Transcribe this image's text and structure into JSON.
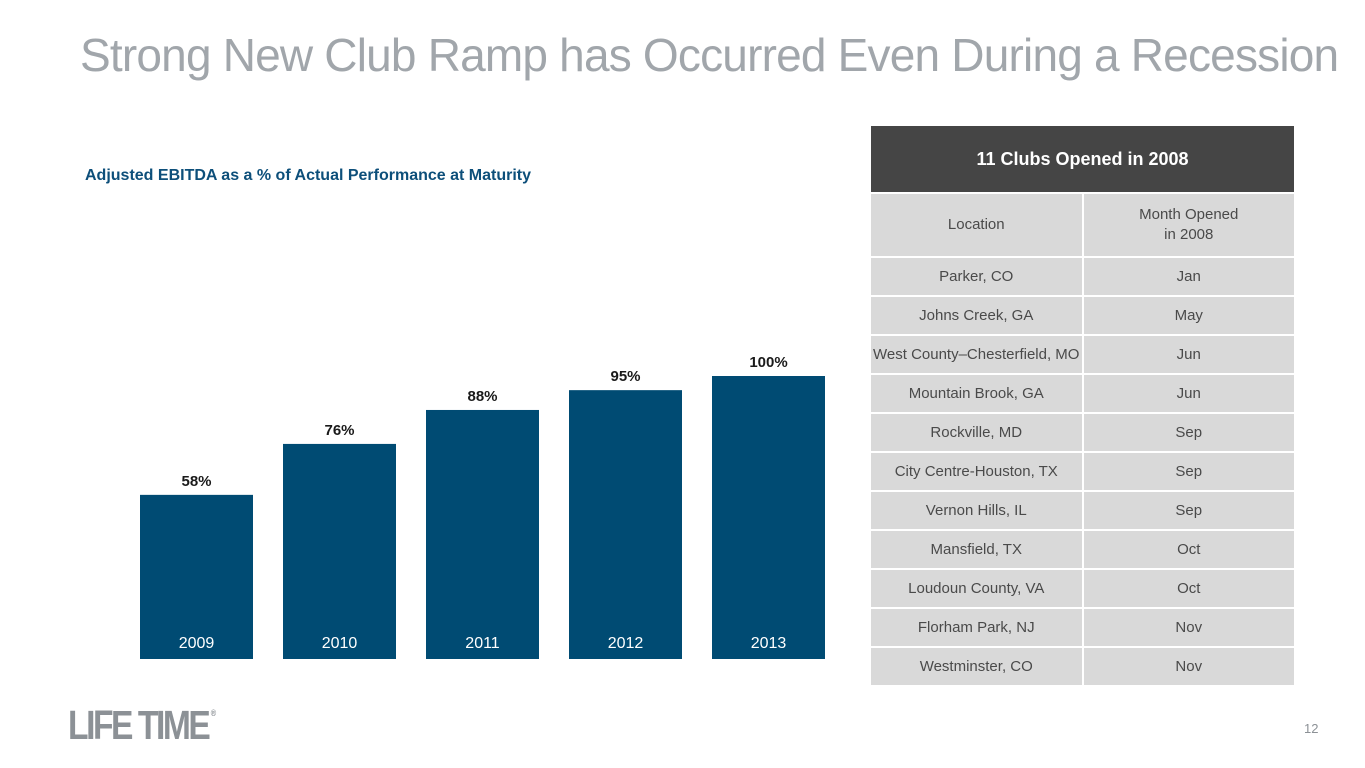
{
  "slide": {
    "title": "Strong New Club Ramp has Occurred Even During a Recession",
    "page_number": "12",
    "logo_text": "LIFE TIME",
    "logo_mark": "®"
  },
  "chart_data": {
    "type": "bar",
    "title": "Adjusted EBITDA as a % of Actual Performance at Maturity",
    "categories": [
      "2009",
      "2010",
      "2011",
      "2012",
      "2013"
    ],
    "values": [
      58,
      76,
      88,
      95,
      100
    ],
    "value_labels": [
      "58%",
      "76%",
      "88%",
      "95%",
      "100%"
    ],
    "ylim": [
      0,
      100
    ],
    "grid": false,
    "legend": "none",
    "bar_color": "#004b73"
  },
  "table": {
    "title": "11 Clubs Opened in 2008",
    "headers": {
      "location": "Location",
      "month_line1": "Month Opened",
      "month_line2": "in 2008"
    },
    "rows": [
      {
        "location": "Parker, CO",
        "month": "Jan"
      },
      {
        "location": "Johns Creek, GA",
        "month": "May"
      },
      {
        "location": "West County–Chesterfield, MO",
        "month": "Jun"
      },
      {
        "location": "Mountain Brook, GA",
        "month": "Jun"
      },
      {
        "location": "Rockville, MD",
        "month": "Sep"
      },
      {
        "location": "City Centre-Houston, TX",
        "month": "Sep"
      },
      {
        "location": "Vernon Hills, IL",
        "month": "Sep"
      },
      {
        "location": "Mansfield, TX",
        "month": "Oct"
      },
      {
        "location": "Loudoun County, VA",
        "month": "Oct"
      },
      {
        "location": "Florham Park, NJ",
        "month": "Nov"
      },
      {
        "location": "Westminster, CO",
        "month": "Nov"
      }
    ]
  }
}
